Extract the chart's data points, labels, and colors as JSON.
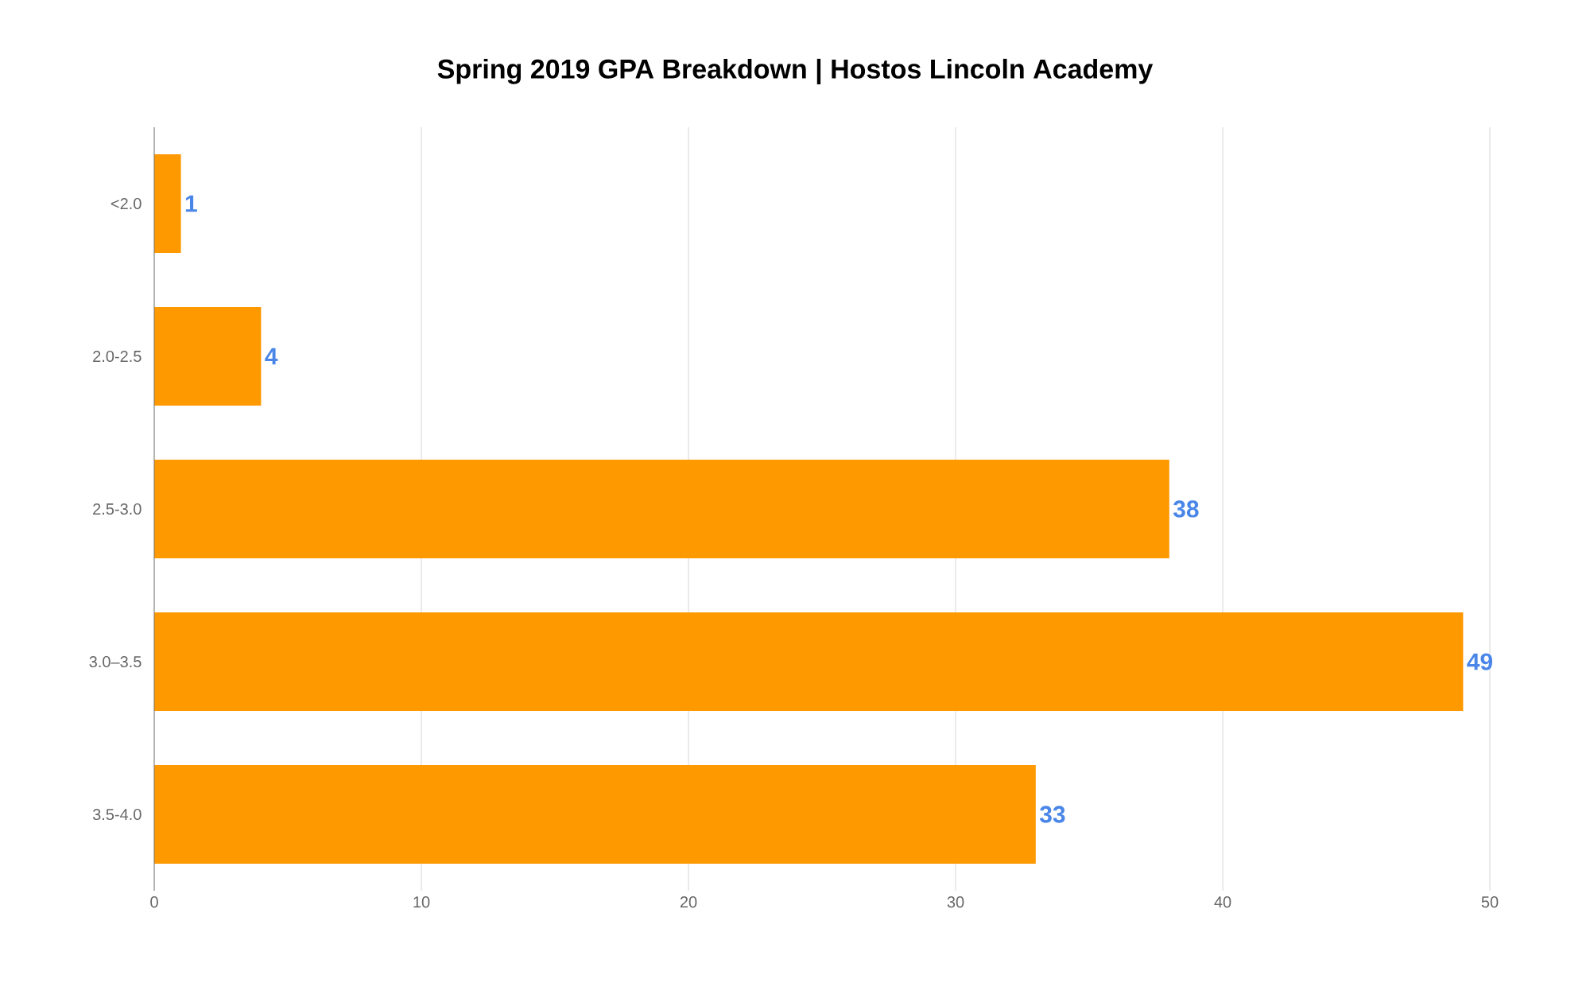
{
  "chart_data": {
    "type": "bar",
    "orientation": "horizontal",
    "title": "Spring 2019 GPA Breakdown | Hostos Lincoln Academy",
    "categories": [
      "<2.0",
      "2.0-2.5",
      "2.5-3.0",
      "3.0–3.5",
      "3.5-4.0"
    ],
    "values": [
      1,
      4,
      38,
      49,
      33
    ],
    "color": "#ff9900",
    "data_labels": true,
    "xlim": [
      0,
      50
    ],
    "xticks": [
      0,
      10,
      20,
      30,
      40,
      50
    ],
    "grid": "x"
  }
}
